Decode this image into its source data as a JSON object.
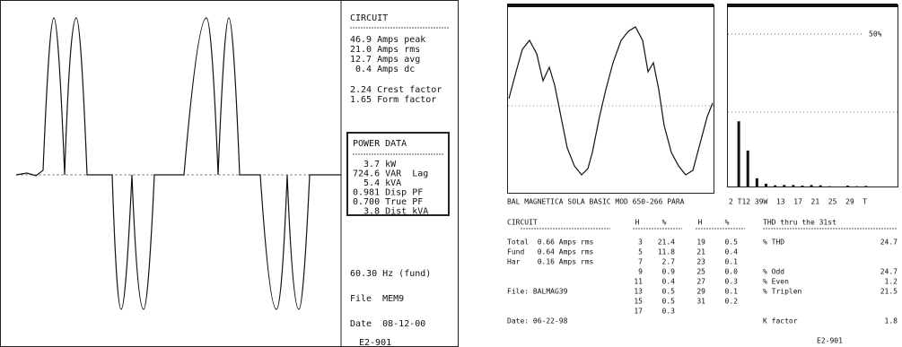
{
  "left": {
    "circuit_title": "CIRCUIT",
    "circuit_lines": [
      "46.9 Amps peak",
      "21.0 Amps rms",
      "12.7 Amps avg",
      " 0.4 Amps dc"
    ],
    "factor_lines": [
      "2.24 Crest factor",
      "1.65 Form factor"
    ],
    "power_title": "POWER DATA",
    "power_lines": [
      "  3.7 kW",
      "724.6 VAR  Lag",
      "  5.4 kVA",
      "0.981 Disp PF",
      "0.700 True PF",
      "  3.8 Dist kVA"
    ],
    "freq": "60.30 Hz (fund)",
    "file": "File  MEM9",
    "date": "Date  08-12-00",
    "id": "E2-901"
  },
  "right": {
    "caption": "BAL MAGNETICA SOLA BASIC MOD 650-266 PARA",
    "chart_top": {
      "value": 50,
      "label": "50%"
    },
    "axis_text": "2 T12 39W  13  17  21  25  29  T",
    "headers": [
      "CIRCUIT",
      "H",
      "%",
      "H",
      "%",
      "THD thru the 31st"
    ],
    "circuit_rows": [
      "Total  0.66 Amps rms",
      "Fund   0.64 Amps rms",
      "Har    0.16 Amps rms",
      "File: BALMAG39",
      "Date: 06-22-98"
    ],
    "harmonics": [
      {
        "h": "3",
        "pct": "21.4"
      },
      {
        "h": "5",
        "pct": "11.8"
      },
      {
        "h": "7",
        "pct": "2.7"
      },
      {
        "h": "9",
        "pct": "0.9"
      },
      {
        "h": "11",
        "pct": "0.4"
      },
      {
        "h": "13",
        "pct": "0.5"
      },
      {
        "h": "15",
        "pct": "0.5"
      },
      {
        "h": "17",
        "pct": "0.3"
      },
      {
        "h": "19",
        "pct": "0.5"
      },
      {
        "h": "21",
        "pct": "0.4"
      },
      {
        "h": "23",
        "pct": "0.1"
      },
      {
        "h": "25",
        "pct": "0.0"
      },
      {
        "h": "27",
        "pct": "0.3"
      },
      {
        "h": "29",
        "pct": "0.1"
      },
      {
        "h": "31",
        "pct": "0.2"
      }
    ],
    "thd_rows": [
      [
        "% THD",
        "24.7"
      ],
      [
        "% Odd",
        "24.7"
      ],
      [
        "% Even",
        "1.2"
      ],
      [
        "% Triplen",
        "21.5"
      ],
      [
        "K factor",
        "1.8"
      ]
    ],
    "id": "E2-901"
  }
}
